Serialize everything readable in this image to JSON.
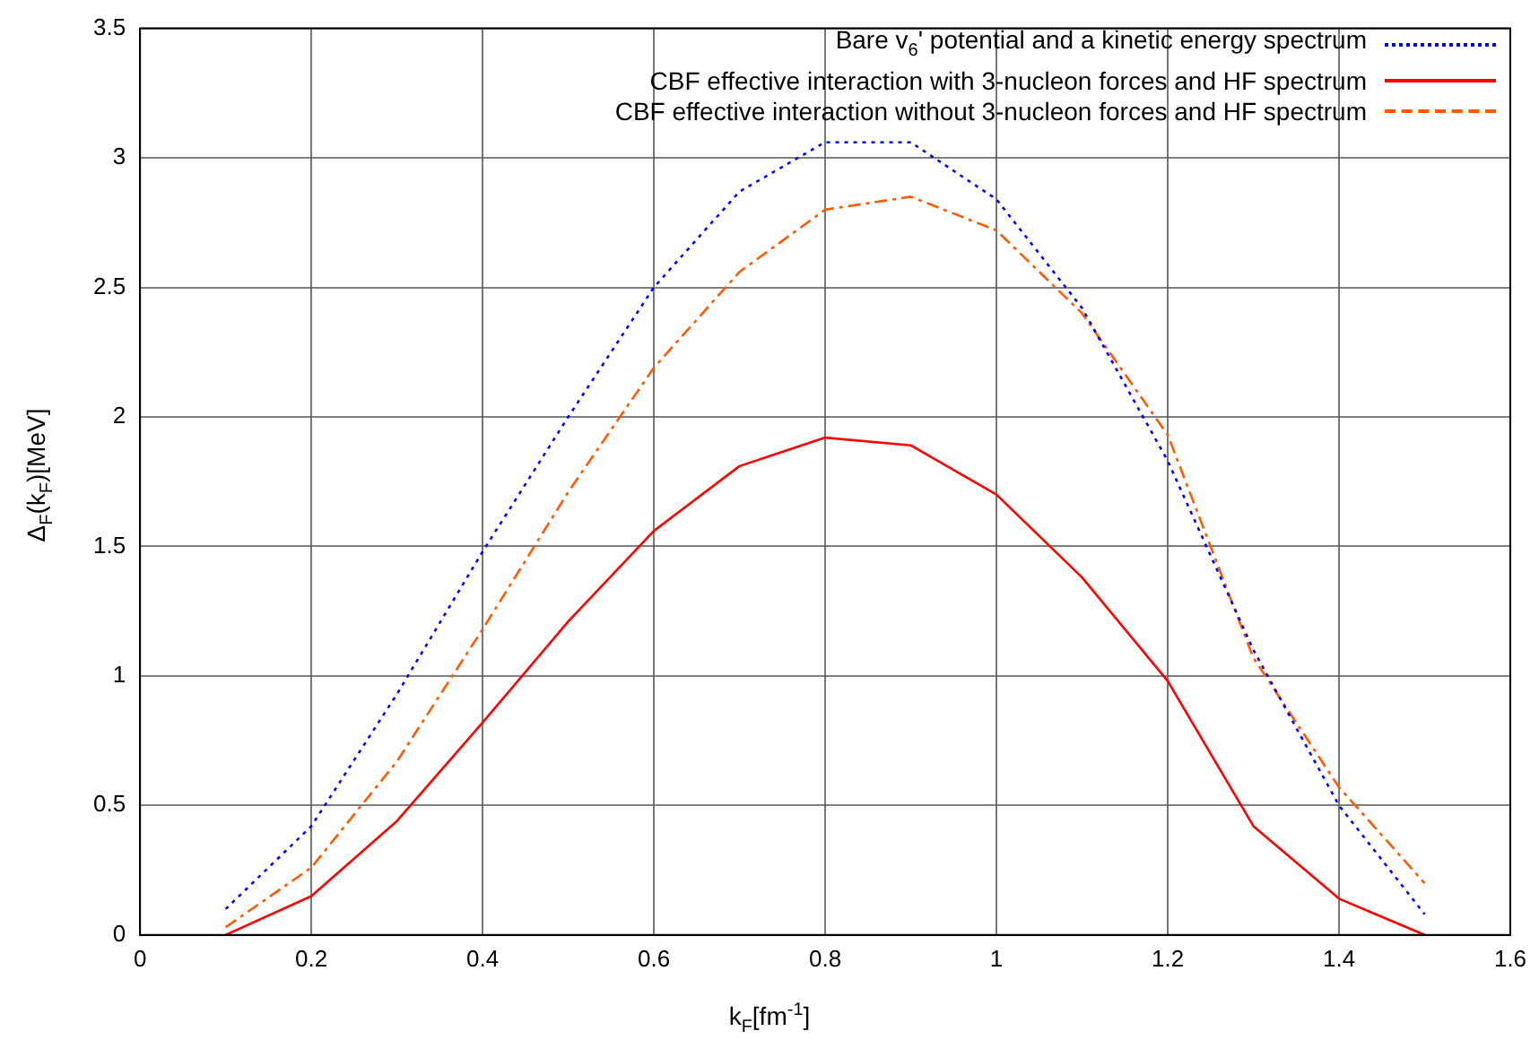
{
  "chart_data": {
    "type": "line",
    "xlabel": "k$_{F}$[fm$^{-1}$]",
    "ylabel": "Δ$_{F}$(k$_{F}$)[MeV]",
    "x": [
      0.1,
      0.2,
      0.3,
      0.4,
      0.5,
      0.6,
      0.7,
      0.8,
      0.9,
      1.0,
      1.1,
      1.2,
      1.3,
      1.4,
      1.5
    ],
    "series": [
      {
        "name": "Bare v$_{6}$' potential and a kinetic energy spectrum",
        "color": "#0000ff",
        "line_style": "dotted",
        "values": [
          0.1,
          0.42,
          0.93,
          1.48,
          2.0,
          2.5,
          2.87,
          3.06,
          3.06,
          2.84,
          2.42,
          1.83,
          1.1,
          0.5,
          0.08
        ]
      },
      {
        "name": "CBF effective interaction with 3-nucleon forces and HF spectrum",
        "color": "#ff0000",
        "line_style": "solid",
        "values": [
          0,
          0.15,
          0.44,
          0.82,
          1.21,
          1.56,
          1.81,
          1.92,
          1.89,
          1.7,
          1.38,
          0.98,
          0.42,
          0.14,
          0
        ]
      },
      {
        "name": "CBF effective interaction without 3-nucleon forces and HF spectrum",
        "color": "#ff5a00",
        "line_style": "dashed",
        "values": [
          0.03,
          0.26,
          0.67,
          1.18,
          1.71,
          2.19,
          2.56,
          2.8,
          2.85,
          2.72,
          2.4,
          1.93,
          1.07,
          0.57,
          0.2
        ]
      }
    ],
    "xlim": [
      0,
      1.6
    ],
    "xticks": [
      0,
      0.2,
      0.4,
      0.6,
      0.8,
      1,
      1.2,
      1.4,
      1.6
    ],
    "ylim": [
      0,
      3.5
    ],
    "yticks": [
      0,
      0.5,
      1,
      1.5,
      2,
      2.5,
      3,
      3.5
    ],
    "grid": true,
    "legend": "top right",
    "marker": "none"
  }
}
